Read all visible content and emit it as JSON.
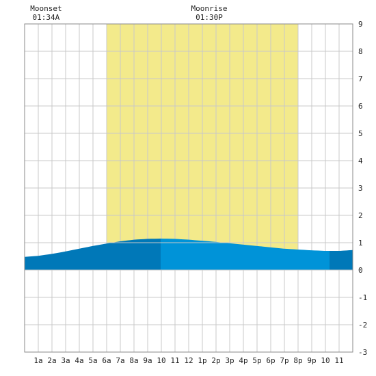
{
  "chart_data": {
    "type": "area",
    "title": "",
    "xlabel": "",
    "ylabel": "",
    "x_tick_labels": [
      "1a",
      "2a",
      "3a",
      "4a",
      "5a",
      "6a",
      "7a",
      "8a",
      "9a",
      "10",
      "11",
      "12",
      "1p",
      "2p",
      "3p",
      "4p",
      "5p",
      "6p",
      "7p",
      "8p",
      "9p",
      "10",
      "11"
    ],
    "x_range_hours": [
      0,
      24
    ],
    "ylim": [
      -3,
      9
    ],
    "y_ticks": [
      9,
      8,
      7,
      6,
      5,
      4,
      3,
      2,
      1,
      0,
      -1,
      -2,
      -3
    ],
    "grid": true,
    "daylight_hours": [
      6,
      20
    ],
    "tide_color_day": "#0093d8",
    "tide_color_night": "#0078b8",
    "daylight_color": "#f3ea8b",
    "annotations": [
      {
        "label": "Moonset",
        "time": "01:34A",
        "hour": 1.57
      },
      {
        "label": "Moonrise",
        "time": "01:30P",
        "hour": 13.5
      }
    ],
    "series": [
      {
        "x": [
          0,
          1,
          2,
          3,
          4,
          5,
          6,
          7,
          8,
          9,
          10,
          11,
          12,
          13,
          14,
          15,
          16,
          17,
          18,
          19,
          20,
          21,
          22,
          23,
          24
        ],
        "values": [
          0.48,
          0.52,
          0.59,
          0.68,
          0.78,
          0.88,
          0.97,
          1.05,
          1.11,
          1.14,
          1.15,
          1.14,
          1.11,
          1.07,
          1.03,
          0.98,
          0.93,
          0.88,
          0.83,
          0.78,
          0.75,
          0.72,
          0.7,
          0.7,
          0.73
        ]
      }
    ]
  }
}
